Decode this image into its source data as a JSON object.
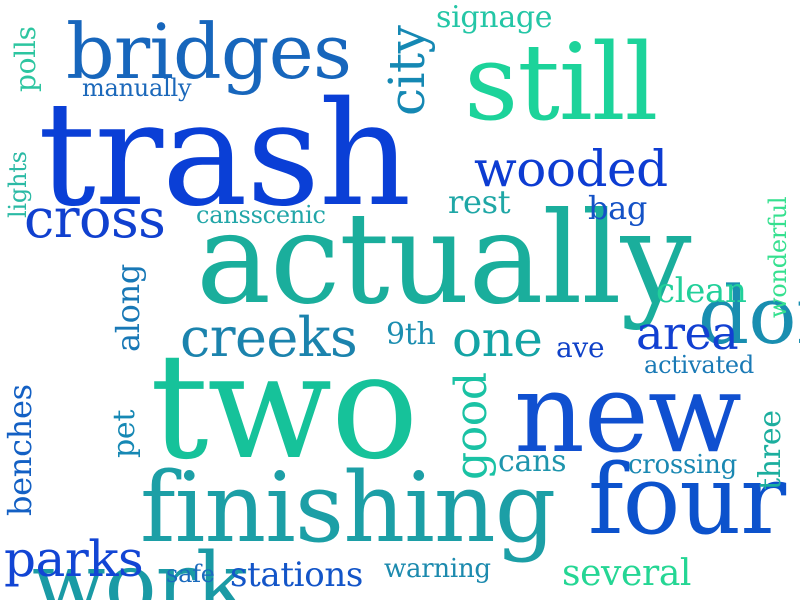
{
  "words": [
    {
      "text": "trash",
      "color": "#0a3fd6"
    },
    {
      "text": "actually",
      "color": "#1aae9c"
    },
    {
      "text": "two",
      "color": "#16c29a"
    },
    {
      "text": "finishing",
      "color": "#1c9fa6"
    },
    {
      "text": "new",
      "color": "#1050d0"
    },
    {
      "text": "four",
      "color": "#0c52cc"
    },
    {
      "text": "still",
      "color": "#1cd39a"
    },
    {
      "text": "bridges",
      "color": "#1766bc"
    },
    {
      "text": "done",
      "color": "#198eb0"
    },
    {
      "text": "work",
      "color": "#1a9aa5"
    },
    {
      "text": "creeks",
      "color": "#1b83ad"
    },
    {
      "text": "cross",
      "color": "#1040cf"
    },
    {
      "text": "wooded",
      "color": "#0d3cd2"
    },
    {
      "text": "parks",
      "color": "#1245d4"
    },
    {
      "text": "area",
      "color": "#1240d2"
    },
    {
      "text": "one",
      "color": "#14a4a5"
    },
    {
      "text": "city",
      "color": "#1588b3"
    },
    {
      "text": "good",
      "color": "#1ac2a4"
    },
    {
      "text": "clean",
      "color": "#22d09a"
    },
    {
      "text": "stations",
      "color": "#1355c8"
    },
    {
      "text": "several",
      "color": "#25d694"
    },
    {
      "text": "signage",
      "color": "#24c6a6"
    },
    {
      "text": "rest",
      "color": "#1fa7a6"
    },
    {
      "text": "bag",
      "color": "#1452c6"
    },
    {
      "text": "cans",
      "color": "#1f95ad"
    },
    {
      "text": "9th",
      "color": "#1c8eb0"
    },
    {
      "text": "ave",
      "color": "#1042c8"
    },
    {
      "text": "benches",
      "color": "#1360c4"
    },
    {
      "text": "three",
      "color": "#1cae9e"
    },
    {
      "text": "along",
      "color": "#1878b6"
    },
    {
      "text": "crossing",
      "color": "#1a88b2"
    },
    {
      "text": "warning",
      "color": "#1c8aae"
    },
    {
      "text": "activated",
      "color": "#1a7ab6"
    },
    {
      "text": "pet",
      "color": "#1688b4"
    },
    {
      "text": "safe",
      "color": "#1a6abd"
    },
    {
      "text": "polls",
      "color": "#2dc5a0"
    },
    {
      "text": "manually",
      "color": "#1b68ba"
    },
    {
      "text": "lights",
      "color": "#2bbaa5"
    },
    {
      "text": "cansscenic",
      "color": "#22a6a8"
    },
    {
      "text": "wonderful",
      "color": "#35e08f"
    }
  ]
}
